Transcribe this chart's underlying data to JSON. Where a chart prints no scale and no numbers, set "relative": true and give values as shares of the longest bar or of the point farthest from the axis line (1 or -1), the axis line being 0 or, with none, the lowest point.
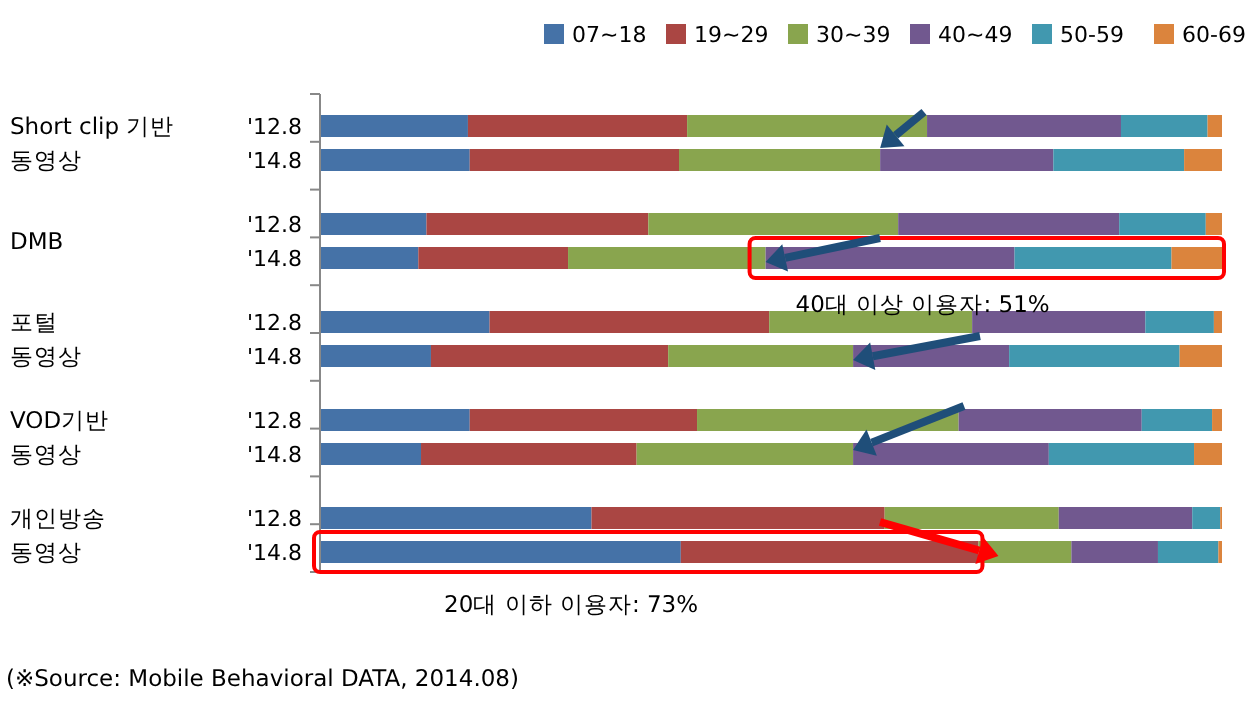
{
  "chart_data": {
    "type": "bar",
    "orientation": "horizontal",
    "stacked": true,
    "relative": true,
    "legend": "top",
    "categories": [
      "'12.8",
      "'14.8",
      "'12.8",
      "'14.8",
      "'12.8",
      "'14.8",
      "'12.8",
      "'14.8",
      "'12.8",
      "'14.8"
    ],
    "series": [
      {
        "name": "07~18",
        "color": "#4572a7",
        "values": [
          0.164,
          0.166,
          0.118,
          0.109,
          0.188,
          0.123,
          0.166,
          0.112,
          0.301,
          0.4
        ]
      },
      {
        "name": "19~29",
        "color": "#aa4643",
        "values": [
          0.243,
          0.232,
          0.246,
          0.166,
          0.31,
          0.263,
          0.252,
          0.239,
          0.325,
          0.33
        ]
      },
      {
        "name": "30~39",
        "color": "#89a54e",
        "values": [
          0.266,
          0.223,
          0.277,
          0.219,
          0.225,
          0.205,
          0.29,
          0.24,
          0.193,
          0.103
        ]
      },
      {
        "name": "40~49",
        "color": "#71588f",
        "values": [
          0.215,
          0.192,
          0.245,
          0.276,
          0.192,
          0.173,
          0.203,
          0.217,
          0.148,
          0.096
        ]
      },
      {
        "name": "50-59",
        "color": "#4198af",
        "values": [
          0.096,
          0.145,
          0.096,
          0.174,
          0.076,
          0.189,
          0.078,
          0.161,
          0.031,
          0.067
        ]
      },
      {
        "name": "60-69",
        "color": "#db843d",
        "values": [
          0.016,
          0.042,
          0.018,
          0.056,
          0.009,
          0.047,
          0.011,
          0.031,
          0.002,
          0.004
        ]
      }
    ],
    "annotations": [
      "Short clip 기반 동영상",
      "DMB",
      "포털 동영상",
      "VOD기반 동영상",
      "개인방송 동영상",
      "40대 이상 이용자: 51%",
      "20대 이하 이용자: 73%",
      "(※Source: Mobile Behavioral DATA, 2014.08)"
    ]
  }
}
